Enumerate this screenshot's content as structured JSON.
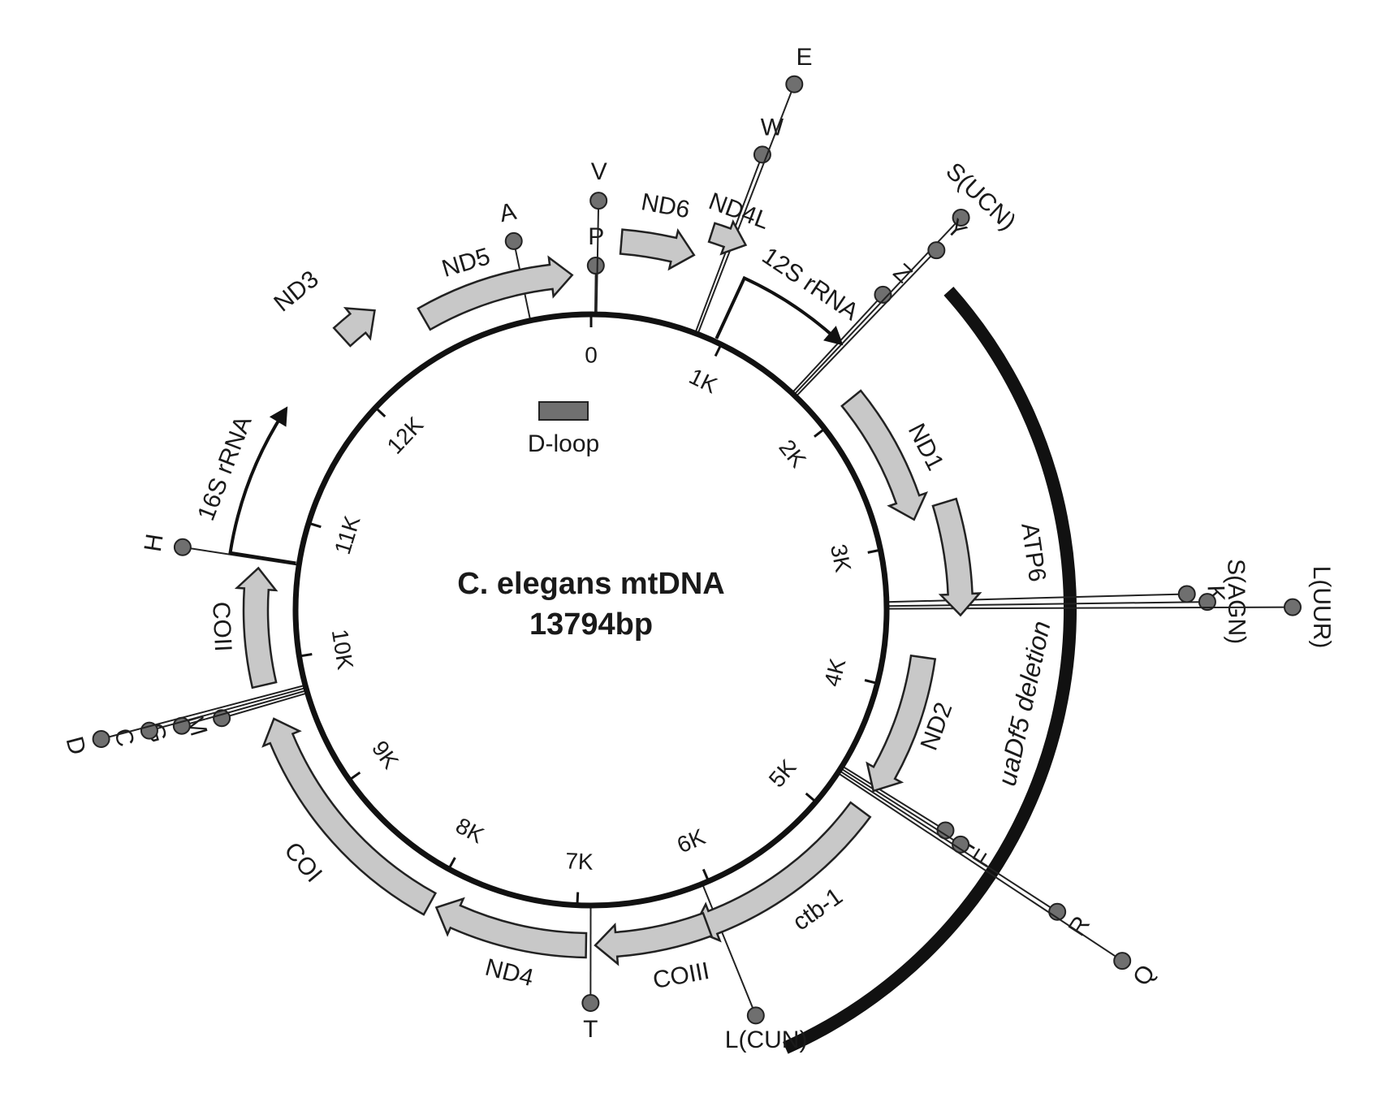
{
  "title_line1": "C. elegans mtDNA",
  "title_line2": "13794bp",
  "total_bp": 13794,
  "colors": {
    "ring": "#111111",
    "gene_fill": "#c8c8c8",
    "trna_dot": "#6f6f6f",
    "dloop_fill": "#707070"
  },
  "ticks": [
    {
      "label": "0",
      "bp": 0
    },
    {
      "label": "1K",
      "bp": 1000
    },
    {
      "label": "2K",
      "bp": 2000
    },
    {
      "label": "3K",
      "bp": 3000
    },
    {
      "label": "4K",
      "bp": 4000
    },
    {
      "label": "5K",
      "bp": 5000
    },
    {
      "label": "6K",
      "bp": 6000
    },
    {
      "label": "7K",
      "bp": 7000
    },
    {
      "label": "8K",
      "bp": 8000
    },
    {
      "label": "9K",
      "bp": 9000
    },
    {
      "label": "10K",
      "bp": 10000
    },
    {
      "label": "11K",
      "bp": 11000
    },
    {
      "label": "12K",
      "bp": 12000
    }
  ],
  "dloop": {
    "label": "D-loop"
  },
  "genes": [
    {
      "name": "ND6",
      "start_bp": 180,
      "end_bp": 620,
      "ring": "outer"
    },
    {
      "name": "ND4L",
      "start_bp": 680,
      "end_bp": 880,
      "ring": "far"
    },
    {
      "name": "ND1",
      "start_bp": 1950,
      "end_bp": 2850,
      "ring": "inner",
      "label_dx": 44,
      "label_dy": -10
    },
    {
      "name": "ATP6",
      "start_bp": 2800,
      "end_bp": 3480,
      "ring": "outer",
      "label_dx": 44,
      "label_dy": 0
    },
    {
      "name": "ND2",
      "start_bp": 3760,
      "end_bp": 4700,
      "ring": "inner",
      "label_dx": 40,
      "label_dy": 0
    },
    {
      "name": "ctb-1",
      "start_bp": 4850,
      "end_bp": 6220,
      "ring": "inner",
      "label_dx": 40,
      "label_dy": 34
    },
    {
      "name": "COIII",
      "start_bp": 6120,
      "end_bp": 6870,
      "ring": "inner",
      "label_dx": 36,
      "label_dy": 46
    },
    {
      "name": "ND4",
      "start_bp": 6930,
      "end_bp": 7950,
      "ring": "inner",
      "label_dx": 0,
      "label_dy": 48
    },
    {
      "name": "COI",
      "start_bp": 8000,
      "end_bp": 9620,
      "ring": "inner",
      "label_dx": -40,
      "label_dy": 46
    },
    {
      "name": "COII",
      "start_bp": 9850,
      "end_bp": 10620,
      "ring": "inner",
      "label_dx": -44,
      "label_dy": 0
    },
    {
      "name": "ND3",
      "start_bp": 12170,
      "end_bp": 12420,
      "ring": "outer",
      "label_dx": -44,
      "label_dy": 0
    },
    {
      "name": "ND5",
      "start_bp": 12650,
      "end_bp": 13670,
      "ring": "inner",
      "label_dx": -36,
      "label_dy": -30
    }
  ],
  "rrnas": [
    {
      "name": "12S rRNA",
      "start_bp": 950,
      "end_bp": 1650
    },
    {
      "name": "16S rRNA",
      "start_bp": 10690,
      "end_bp": 11620
    }
  ],
  "trnas": [
    {
      "name": "P",
      "bp": 30
    },
    {
      "name": "V",
      "bp": 40
    },
    {
      "name": "A",
      "bp": 13340
    },
    {
      "name": "W",
      "bp": 790
    },
    {
      "name": "E",
      "bp": 810
    },
    {
      "name": "Z",
      "bp": 1640
    },
    {
      "name": "S(UCN)",
      "bp": 1660
    },
    {
      "name": "Y",
      "bp": 1680
    },
    {
      "name": "K",
      "bp": 3390
    },
    {
      "name": "S(AGN)",
      "bp": 3420
    },
    {
      "name": "L(UUR)",
      "bp": 3440
    },
    {
      "name": "I",
      "bp": 4670
    },
    {
      "name": "F",
      "bp": 4690
    },
    {
      "name": "R",
      "bp": 4710
    },
    {
      "name": "Q",
      "bp": 4730
    },
    {
      "name": "L(CUN)",
      "bp": 6050
    },
    {
      "name": "T",
      "bp": 6900
    },
    {
      "name": "M",
      "bp": 9720
    },
    {
      "name": "G",
      "bp": 9740
    },
    {
      "name": "C",
      "bp": 9760
    },
    {
      "name": "D",
      "bp": 9780
    },
    {
      "name": "H",
      "bp": 10680
    }
  ],
  "deletion": {
    "label": "uaDf5 deletion",
    "start_bp": 1850,
    "end_bp": 5980
  }
}
